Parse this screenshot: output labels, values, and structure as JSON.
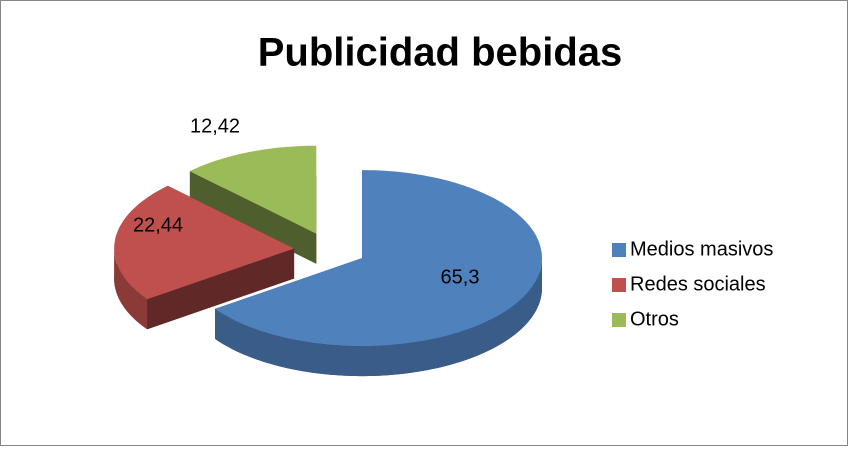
{
  "chart_data": {
    "type": "pie",
    "title": "Publicidad bebidas",
    "categories": [
      "Medios masivos",
      "Redes sociales",
      "Otros"
    ],
    "values": [
      65.3,
      22.44,
      12.42
    ],
    "value_labels": [
      "65,3",
      "22,44",
      "12,42"
    ],
    "colors": [
      "#4f81bd",
      "#c0504d",
      "#9bbb59"
    ],
    "legend": "right"
  }
}
